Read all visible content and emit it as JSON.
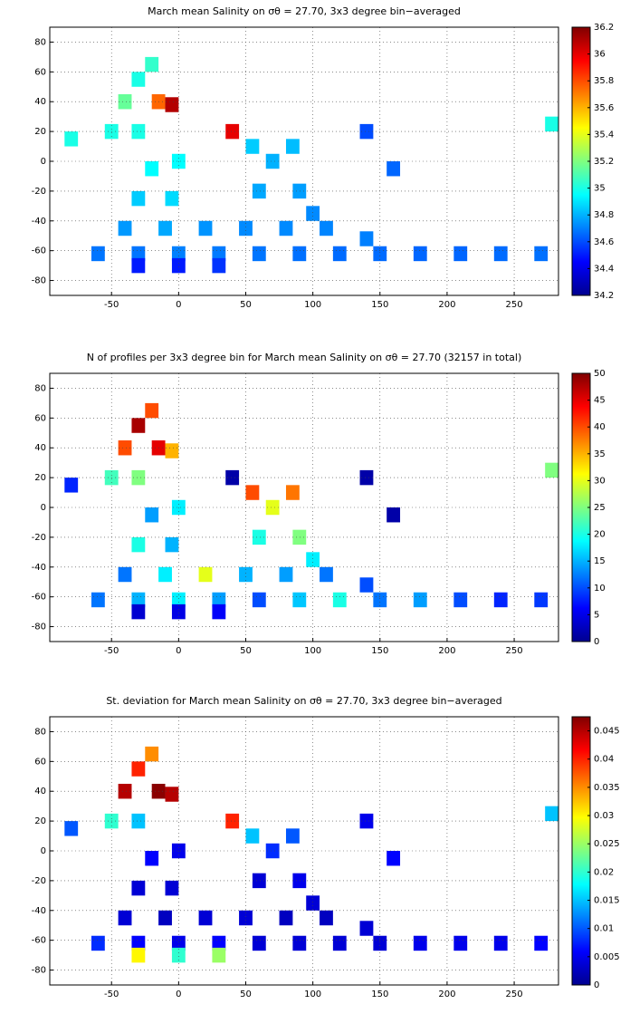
{
  "chart_data": [
    {
      "type": "heatmap",
      "title": "March mean Salinity on σθ = 27.70, 3x3 degree bin−averaged",
      "x": [
        -60,
        -30,
        0,
        30,
        60,
        90,
        120,
        150,
        180,
        210,
        240,
        270,
        -30,
        0,
        30,
        -40,
        -10,
        20,
        50,
        80,
        110,
        140,
        -30,
        -5,
        -20,
        0,
        -50,
        -30,
        -40,
        -15,
        -5,
        -30,
        -20,
        60,
        90,
        70,
        55,
        85,
        100,
        40,
        140,
        160,
        -80,
        278
      ],
      "y": [
        -62,
        -62,
        -62,
        -62,
        -62,
        -62,
        -62,
        -62,
        -62,
        -62,
        -62,
        -62,
        -70,
        -70,
        -70,
        -45,
        -45,
        -45,
        -45,
        -45,
        -45,
        -52,
        -25,
        -25,
        -5,
        0,
        20,
        20,
        40,
        40,
        38,
        55,
        65,
        -20,
        -20,
        0,
        10,
        10,
        -35,
        20,
        20,
        -5,
        15,
        25
      ],
      "values": [
        34.68,
        34.68,
        34.7,
        34.69,
        34.68,
        34.67,
        34.66,
        34.66,
        34.65,
        34.65,
        34.66,
        34.67,
        34.5,
        34.5,
        34.55,
        34.75,
        34.78,
        34.74,
        34.72,
        34.72,
        34.71,
        34.7,
        34.85,
        34.88,
        34.95,
        34.95,
        35.0,
        35.0,
        35.15,
        35.75,
        36.1,
        35.0,
        35.05,
        34.78,
        34.76,
        34.8,
        34.85,
        34.82,
        34.72,
        36.0,
        34.6,
        34.65,
        35.0,
        35.0
      ],
      "xlim": [
        -96,
        283
      ],
      "ylim": [
        -90,
        90
      ],
      "xticks": [
        -50,
        0,
        50,
        100,
        150,
        200,
        250
      ],
      "yticks": [
        -80,
        -60,
        -40,
        -20,
        0,
        20,
        40,
        60,
        80
      ],
      "clim": [
        34.2,
        36.2
      ],
      "cticks": [
        34.2,
        34.4,
        34.6,
        34.8,
        35,
        35.2,
        35.4,
        35.6,
        35.8,
        36,
        36.2
      ],
      "grid": true
    },
    {
      "type": "heatmap",
      "title": "N of profiles per 3x3 degree bin for March mean Salinity on σθ = 27.70 (32157 in total)",
      "x": [
        -60,
        -30,
        0,
        30,
        60,
        90,
        120,
        150,
        180,
        210,
        240,
        270,
        -30,
        0,
        30,
        -40,
        -10,
        20,
        50,
        80,
        110,
        140,
        -30,
        -5,
        -20,
        0,
        -50,
        -30,
        -40,
        -15,
        -5,
        -30,
        -20,
        60,
        90,
        70,
        55,
        85,
        100,
        40,
        140,
        160,
        -80,
        278
      ],
      "y": [
        -62,
        -62,
        -62,
        -62,
        -62,
        -62,
        -62,
        -62,
        -62,
        -62,
        -62,
        -62,
        -70,
        -70,
        -70,
        -45,
        -45,
        -45,
        -45,
        -45,
        -45,
        -52,
        -25,
        -25,
        -5,
        0,
        20,
        20,
        40,
        40,
        38,
        55,
        65,
        -20,
        -20,
        0,
        10,
        10,
        -35,
        20,
        20,
        -5,
        15,
        25
      ],
      "values": [
        12,
        15,
        18,
        14,
        10,
        16,
        20,
        12,
        14,
        10,
        8,
        9,
        4,
        5,
        6,
        12,
        18,
        30,
        15,
        14,
        12,
        10,
        20,
        15,
        14,
        18,
        22,
        25,
        40,
        45,
        35,
        48,
        40,
        20,
        25,
        30,
        40,
        38,
        18,
        2,
        2,
        2,
        8,
        25
      ],
      "xlim": [
        -96,
        283
      ],
      "ylim": [
        -90,
        90
      ],
      "xticks": [
        -50,
        0,
        50,
        100,
        150,
        200,
        250
      ],
      "yticks": [
        -80,
        -60,
        -40,
        -20,
        0,
        20,
        40,
        60,
        80
      ],
      "clim": [
        0,
        50
      ],
      "cticks": [
        0,
        5,
        10,
        15,
        20,
        25,
        30,
        35,
        40,
        45,
        50
      ],
      "grid": true
    },
    {
      "type": "heatmap",
      "title": "St. deviation for March mean Salinity on σθ = 27.70, 3x3 degree bin−averaged",
      "x": [
        -60,
        -30,
        0,
        30,
        60,
        90,
        120,
        150,
        180,
        210,
        240,
        270,
        -30,
        0,
        30,
        -40,
        -10,
        20,
        50,
        80,
        110,
        140,
        -30,
        -5,
        -20,
        0,
        -50,
        -30,
        -40,
        -15,
        -5,
        -30,
        -20,
        60,
        90,
        70,
        55,
        85,
        100,
        40,
        140,
        160,
        -80,
        278
      ],
      "y": [
        -62,
        -62,
        -62,
        -62,
        -62,
        -62,
        -62,
        -62,
        -62,
        -62,
        -62,
        -62,
        -70,
        -70,
        -70,
        -45,
        -45,
        -45,
        -45,
        -45,
        -45,
        -52,
        -25,
        -25,
        -5,
        0,
        20,
        20,
        40,
        40,
        38,
        55,
        65,
        -20,
        -20,
        0,
        10,
        10,
        -35,
        20,
        20,
        -5,
        15,
        25
      ],
      "values": [
        0.008,
        0.006,
        0.005,
        0.006,
        0.004,
        0.004,
        0.004,
        0.004,
        0.005,
        0.005,
        0.005,
        0.006,
        0.03,
        0.02,
        0.025,
        0.004,
        0.003,
        0.004,
        0.004,
        0.003,
        0.003,
        0.004,
        0.004,
        0.004,
        0.006,
        0.005,
        0.02,
        0.015,
        0.045,
        0.047,
        0.045,
        0.04,
        0.035,
        0.004,
        0.005,
        0.008,
        0.015,
        0.01,
        0.004,
        0.04,
        0.005,
        0.006,
        0.01,
        0.015
      ],
      "xlim": [
        -96,
        283
      ],
      "ylim": [
        -90,
        90
      ],
      "xticks": [
        -50,
        0,
        50,
        100,
        150,
        200,
        250
      ],
      "yticks": [
        -80,
        -60,
        -40,
        -20,
        0,
        20,
        40,
        60,
        80
      ],
      "clim": [
        0,
        0.0475
      ],
      "cticks": [
        0,
        0.005,
        0.01,
        0.015,
        0.02,
        0.025,
        0.03,
        0.035,
        0.04,
        0.045
      ],
      "grid": true
    }
  ]
}
